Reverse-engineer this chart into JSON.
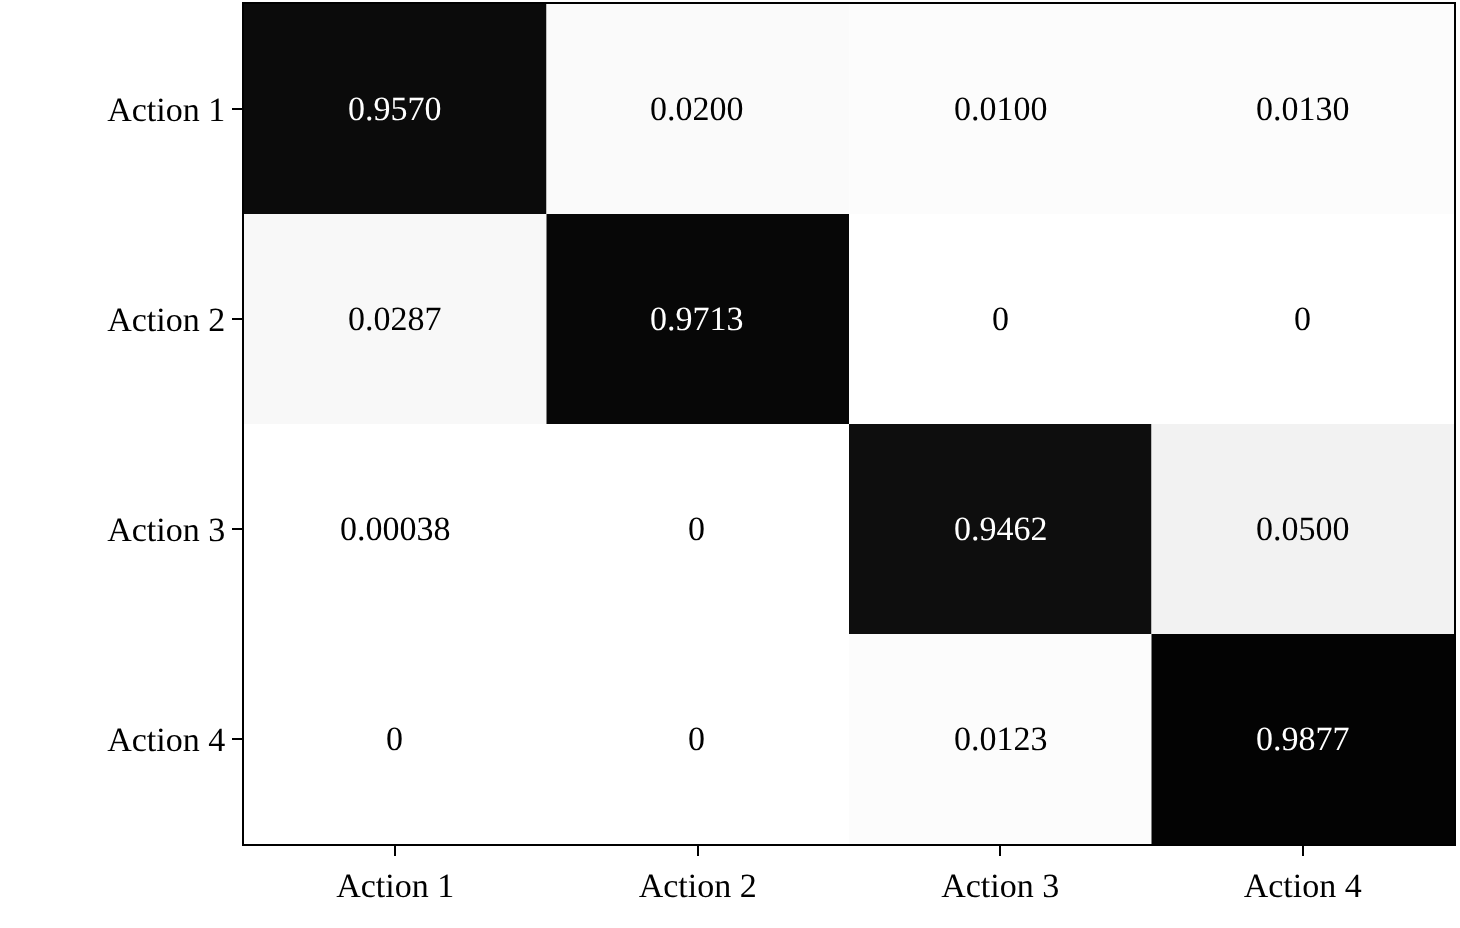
{
  "chart_data": {
    "type": "heatmap",
    "categories": [
      "Action 1",
      "Action 2",
      "Action 3",
      "Action 4"
    ],
    "y_categories": [
      "Action 1",
      "Action 2",
      "Action 3",
      "Action 4"
    ],
    "cells": [
      [
        0.957,
        0.02,
        0.01,
        0.013
      ],
      [
        0.0287,
        0.9713,
        0,
        0
      ],
      [
        0.00038,
        0,
        0.9462,
        0.05
      ],
      [
        0,
        0,
        0.0123,
        0.9877
      ]
    ],
    "cell_labels": [
      [
        "0.9570",
        "0.0200",
        "0.0100",
        "0.0130"
      ],
      [
        "0.0287",
        "0.9713",
        "0",
        "0"
      ],
      [
        "0.00038",
        "0",
        "0.9462",
        "0.0500"
      ],
      [
        "0",
        "0",
        "0.0123",
        "0.9877"
      ]
    ]
  }
}
